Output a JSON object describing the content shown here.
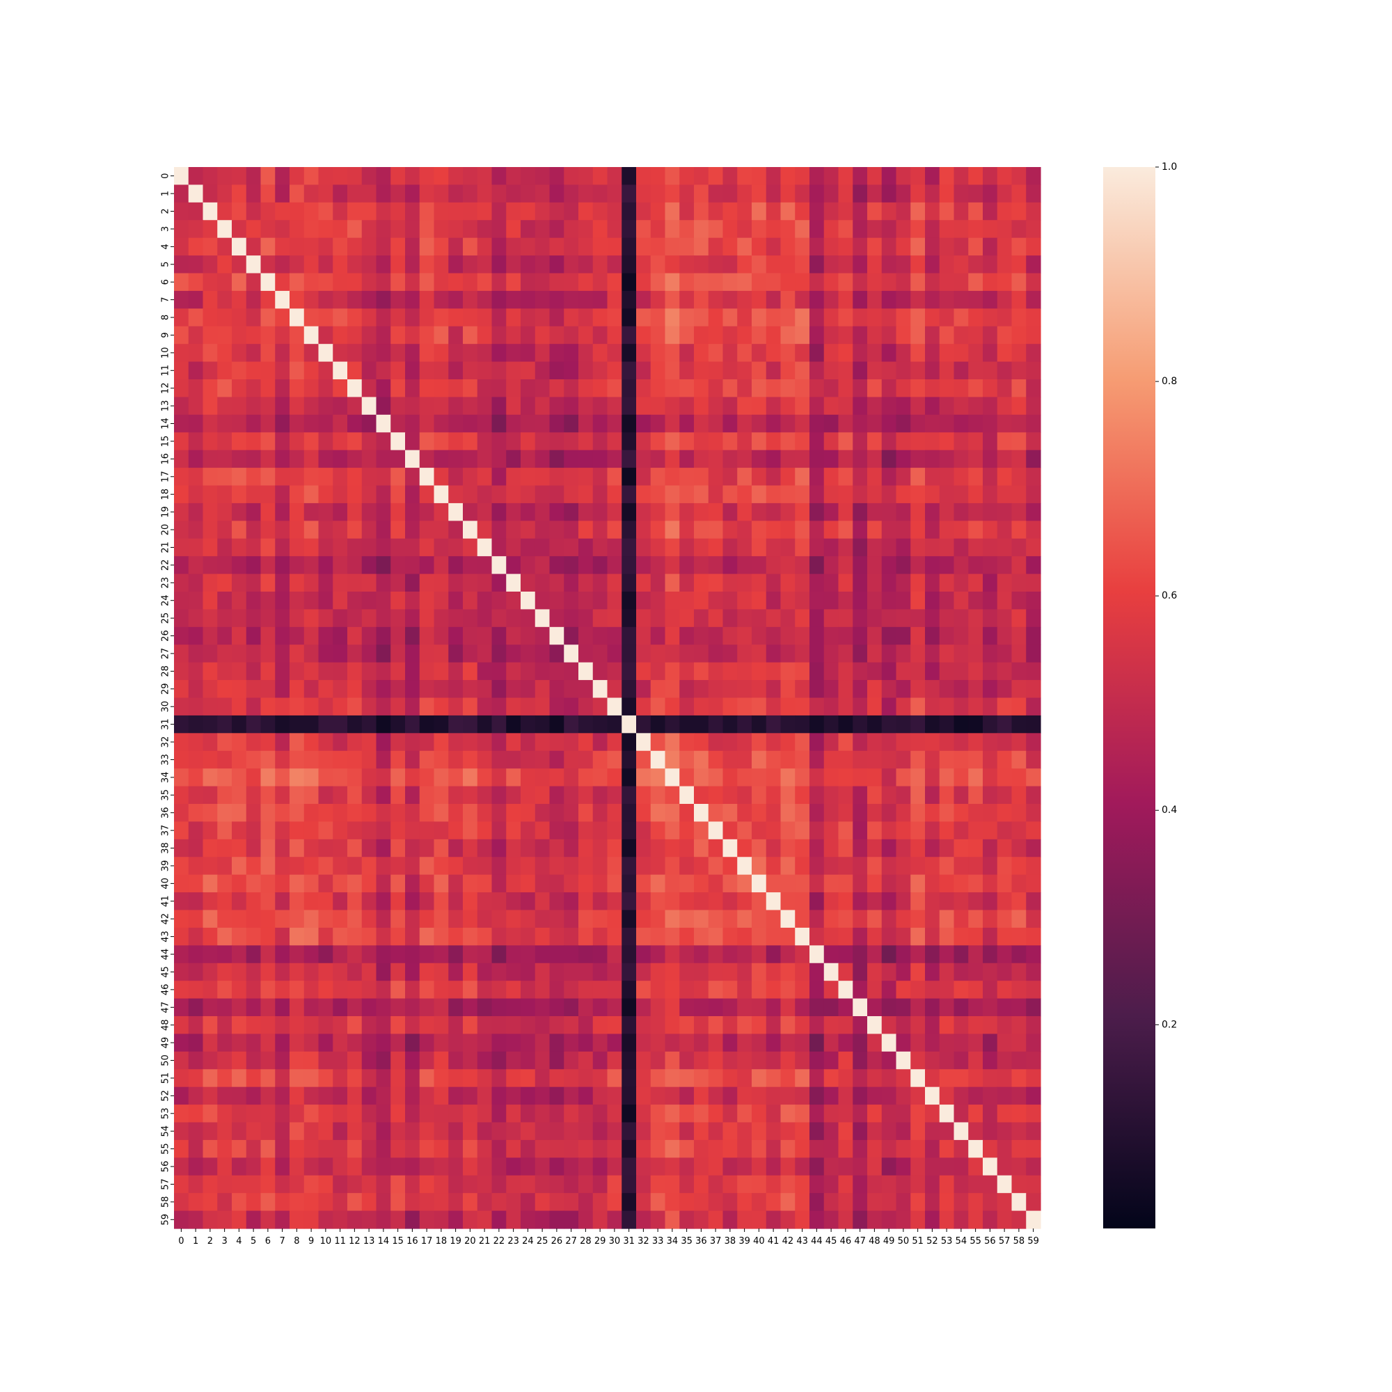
{
  "chart_data": {
    "type": "heatmap",
    "title": "",
    "xlabel": "",
    "ylabel": "",
    "x_tick_labels": [
      "0",
      "1",
      "2",
      "3",
      "4",
      "5",
      "6",
      "7",
      "8",
      "9",
      "10",
      "11",
      "12",
      "13",
      "14",
      "15",
      "16",
      "17",
      "18",
      "19",
      "20",
      "21",
      "22",
      "23",
      "24",
      "25",
      "26",
      "27",
      "28",
      "29",
      "30",
      "31",
      "32",
      "33",
      "34",
      "35",
      "36",
      "37",
      "38",
      "39",
      "40",
      "41",
      "42",
      "43",
      "44",
      "45",
      "46",
      "47",
      "48",
      "49",
      "50",
      "51",
      "52",
      "53",
      "54",
      "55",
      "56",
      "57",
      "58",
      "59"
    ],
    "y_tick_labels": [
      "0",
      "1",
      "2",
      "3",
      "4",
      "5",
      "6",
      "7",
      "8",
      "9",
      "10",
      "11",
      "12",
      "13",
      "14",
      "15",
      "16",
      "17",
      "18",
      "19",
      "20",
      "21",
      "22",
      "23",
      "24",
      "25",
      "26",
      "27",
      "28",
      "29",
      "30",
      "31",
      "32",
      "33",
      "34",
      "35",
      "36",
      "37",
      "38",
      "39",
      "40",
      "41",
      "42",
      "43",
      "44",
      "45",
      "46",
      "47",
      "48",
      "49",
      "50",
      "51",
      "52",
      "53",
      "54",
      "55",
      "56",
      "57",
      "58",
      "59"
    ],
    "colormap": "rocket",
    "colorbar": {
      "min": 0.0,
      "max": 1.0,
      "tick_values": [
        0.2,
        0.4,
        0.6,
        0.8,
        1.0
      ],
      "tick_labels": [
        "0.2",
        "0.4",
        "0.6",
        "0.8",
        "1.0"
      ],
      "colors_low_to_high": [
        "#03051a",
        "#4c1d4b",
        "#a11a5b",
        "#e83f3f",
        "#f69c73",
        "#faebdd"
      ]
    },
    "diagonal_value": 1.0,
    "row_means": [
      0.52,
      0.5,
      0.6,
      0.58,
      0.61,
      0.51,
      0.64,
      0.46,
      0.64,
      0.62,
      0.52,
      0.52,
      0.59,
      0.48,
      0.36,
      0.58,
      0.38,
      0.57,
      0.58,
      0.44,
      0.58,
      0.48,
      0.38,
      0.47,
      0.45,
      0.46,
      0.38,
      0.4,
      0.48,
      0.48,
      0.56,
      0.14,
      0.55,
      0.62,
      0.74,
      0.57,
      0.65,
      0.6,
      0.56,
      0.6,
      0.64,
      0.53,
      0.66,
      0.65,
      0.32,
      0.48,
      0.58,
      0.35,
      0.54,
      0.38,
      0.46,
      0.63,
      0.44,
      0.57,
      0.5,
      0.57,
      0.43,
      0.56,
      0.56,
      0.46
    ],
    "values_note": ""
  }
}
